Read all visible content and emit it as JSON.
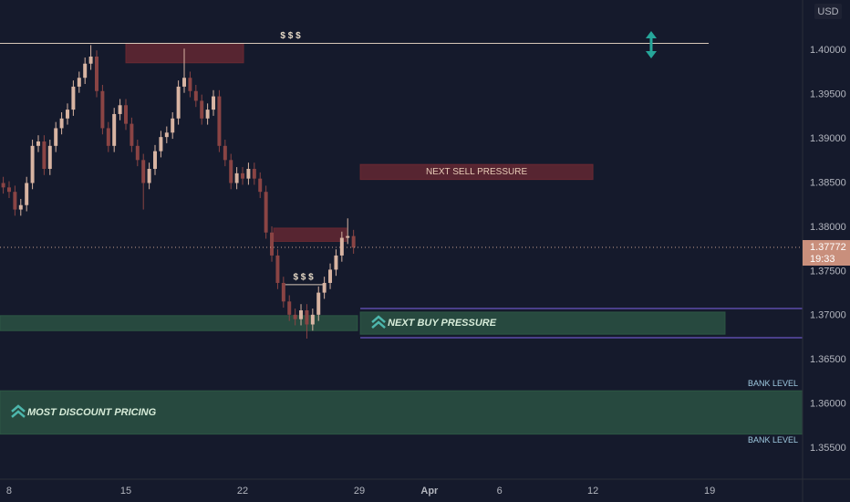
{
  "chart_data": {
    "type": "candlestick",
    "currency": "USD",
    "up_color": "#d8b4a2",
    "down_color": "#8a4444",
    "grid": false,
    "xlim": [
      -0.39,
      33.98
    ],
    "ylim": [
      1.3515,
      1.4057
    ],
    "xticks": [
      {
        "value": 0,
        "label": "8"
      },
      {
        "value": 5,
        "label": "15"
      },
      {
        "value": 10,
        "label": "22"
      },
      {
        "value": 15,
        "label": "29"
      },
      {
        "value": 18,
        "label": "Apr"
      },
      {
        "value": 21,
        "label": "6"
      },
      {
        "value": 25,
        "label": "12"
      },
      {
        "value": 30,
        "label": "19"
      }
    ],
    "yticks": [
      {
        "value": 1.355,
        "label": "1.35500"
      },
      {
        "value": 1.36,
        "label": "1.36000"
      },
      {
        "value": 1.365,
        "label": "1.36500"
      },
      {
        "value": 1.37,
        "label": "1.37000"
      },
      {
        "value": 1.375,
        "label": "1.37500"
      },
      {
        "value": 1.38,
        "label": "1.38000"
      },
      {
        "value": 1.385,
        "label": "1.38500"
      },
      {
        "value": 1.39,
        "label": "1.39000"
      },
      {
        "value": 1.395,
        "label": "1.39500"
      },
      {
        "value": 1.4,
        "label": "1.40000"
      }
    ],
    "x": [
      -0.25,
      0,
      0.25,
      0.5,
      0.75,
      1,
      1.25,
      1.5,
      1.75,
      2,
      2.25,
      2.5,
      2.75,
      3,
      3.25,
      3.5,
      3.75,
      4,
      4.25,
      4.5,
      4.75,
      5,
      5.25,
      5.5,
      5.75,
      6,
      6.25,
      6.5,
      6.75,
      7,
      7.25,
      7.5,
      7.75,
      8,
      8.25,
      8.5,
      8.75,
      9,
      9.25,
      9.5,
      9.75,
      10,
      10.25,
      10.5,
      10.75,
      11,
      11.25,
      11.5,
      11.75,
      12,
      12.25,
      12.5,
      12.75,
      13,
      13.25,
      13.5,
      13.75,
      14,
      14.25,
      14.5,
      14.75
    ],
    "open": [
      1.385,
      1.3845,
      1.384,
      1.382,
      1.3825,
      1.385,
      1.3892,
      1.3897,
      1.3866,
      1.3892,
      1.3912,
      1.3923,
      1.3933,
      1.3959,
      1.3969,
      1.3985,
      1.3993,
      1.3954,
      1.3912,
      1.3892,
      1.3928,
      1.3938,
      1.3917,
      1.3892,
      1.3876,
      1.385,
      1.3866,
      1.3886,
      1.3902,
      1.3907,
      1.3923,
      1.3959,
      1.3969,
      1.3954,
      1.3943,
      1.3923,
      1.3933,
      1.3948,
      1.3892,
      1.3876,
      1.385,
      1.3861,
      1.3855,
      1.3866,
      1.3855,
      1.384,
      1.3794,
      1.3768,
      1.3737,
      1.3716,
      1.3701,
      1.3696,
      1.3706,
      1.369,
      1.3701,
      1.3726,
      1.3737,
      1.3752,
      1.3768,
      1.3788,
      1.379
    ],
    "high": [
      1.3857,
      1.3852,
      1.3847,
      1.3832,
      1.3857,
      1.3899,
      1.3904,
      1.3904,
      1.3899,
      1.3919,
      1.393,
      1.394,
      1.3966,
      1.3976,
      1.3992,
      1.4006,
      1.4,
      1.3961,
      1.3919,
      1.3935,
      1.3945,
      1.3945,
      1.3924,
      1.3899,
      1.3883,
      1.3873,
      1.3893,
      1.3909,
      1.3914,
      1.393,
      1.3966,
      1.4002,
      1.3976,
      1.3961,
      1.395,
      1.394,
      1.3955,
      1.3955,
      1.3899,
      1.3883,
      1.3868,
      1.3868,
      1.3873,
      1.3873,
      1.3862,
      1.3847,
      1.3801,
      1.3775,
      1.3744,
      1.3723,
      1.3708,
      1.3713,
      1.3713,
      1.3708,
      1.3733,
      1.3744,
      1.3759,
      1.3775,
      1.3795,
      1.381,
      1.3797
    ],
    "low": [
      1.3838,
      1.3833,
      1.3813,
      1.3813,
      1.3818,
      1.3843,
      1.3885,
      1.3859,
      1.3859,
      1.3885,
      1.3905,
      1.3916,
      1.3926,
      1.3952,
      1.3962,
      1.3978,
      1.3947,
      1.3905,
      1.3885,
      1.3885,
      1.3921,
      1.391,
      1.3885,
      1.3869,
      1.382,
      1.3843,
      1.3859,
      1.3879,
      1.3895,
      1.39,
      1.3916,
      1.3952,
      1.3947,
      1.3936,
      1.3916,
      1.3916,
      1.3926,
      1.3885,
      1.3869,
      1.3843,
      1.3843,
      1.3848,
      1.3848,
      1.3848,
      1.3833,
      1.3787,
      1.3761,
      1.373,
      1.3709,
      1.3694,
      1.3689,
      1.3689,
      1.3674,
      1.3683,
      1.3694,
      1.3719,
      1.373,
      1.3745,
      1.3761,
      1.3781,
      1.377
    ],
    "close": [
      1.3845,
      1.384,
      1.382,
      1.3825,
      1.385,
      1.3892,
      1.3897,
      1.3866,
      1.3892,
      1.3912,
      1.3923,
      1.3933,
      1.3959,
      1.3969,
      1.3985,
      1.3993,
      1.3954,
      1.3912,
      1.3892,
      1.3928,
      1.3938,
      1.3917,
      1.3892,
      1.3876,
      1.385,
      1.3866,
      1.3886,
      1.3902,
      1.3907,
      1.3923,
      1.3959,
      1.3969,
      1.3954,
      1.3943,
      1.3923,
      1.3933,
      1.3948,
      1.3892,
      1.3876,
      1.385,
      1.3861,
      1.3855,
      1.3866,
      1.3855,
      1.384,
      1.3794,
      1.3768,
      1.3737,
      1.3716,
      1.3701,
      1.3696,
      1.3706,
      1.369,
      1.3701,
      1.3726,
      1.3737,
      1.3752,
      1.3768,
      1.3788,
      1.379,
      1.3777
    ],
    "current_price": 1.37772,
    "countdown": "19:33",
    "zones": [
      {
        "x": [
          -0.39,
          33.98
        ],
        "y": [
          1.3566,
          1.3615
        ],
        "color": "#2e5a45",
        "label": "MOST DISCOUNT PRICING",
        "label_color": "#d7ecd9",
        "icon": true
      },
      {
        "x": [
          -0.39,
          14.92
        ],
        "y": [
          1.3683,
          1.37
        ],
        "color": "#2e5a45"
      },
      {
        "x": [
          15.04,
          30.66
        ],
        "y": [
          1.3679,
          1.3704
        ],
        "color": "#2e5a45",
        "label": "NEXT BUY PRESSURE",
        "label_color": "#d7ecd9",
        "icon": true
      },
      {
        "x": [
          5.0,
          10.04
        ],
        "y": [
          1.3986,
          1.4008
        ],
        "color": "#6e2a33"
      },
      {
        "x": [
          15.04,
          25.0
        ],
        "y": [
          1.3854,
          1.3871
        ],
        "color": "#6e2a33",
        "label": "NEXT SELL PRESSURE",
        "label_color": "#e9cdb8"
      },
      {
        "x": [
          11.33,
          14.45
        ],
        "y": [
          1.3784,
          1.3799
        ],
        "color": "#6e2a33"
      }
    ],
    "levels": [
      {
        "x": [
          -0.39,
          29.96
        ],
        "y": 1.4008,
        "color": "#d8c8b8",
        "label": "$ $ $"
      },
      {
        "x": [
          11.7,
          13.5
        ],
        "y": 1.3735,
        "color": "#d8c8b8",
        "label": "$ $ $"
      },
      {
        "x": [
          15.04,
          33.98
        ],
        "y": 1.3708,
        "color": "#4a3f8a"
      },
      {
        "x": [
          15.04,
          33.98
        ],
        "y": 1.3675,
        "color": "#4a3f8a"
      }
    ],
    "level_labels": [
      {
        "y": 1.3623,
        "label": "BANK LEVEL"
      },
      {
        "y": 1.3559,
        "label": "BANK LEVEL"
      }
    ]
  }
}
